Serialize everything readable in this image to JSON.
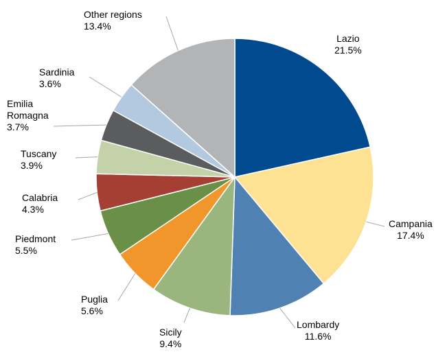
{
  "chart_data": {
    "type": "pie",
    "categories": [
      "Lazio",
      "Campania",
      "Lombardy",
      "Sicily",
      "Puglia",
      "Piedmont",
      "Calabria",
      "Tuscany",
      "Emilia Romagna",
      "Sardinia",
      "Other regions"
    ],
    "values": [
      21.5,
      17.4,
      11.6,
      9.4,
      5.6,
      5.5,
      4.3,
      3.9,
      3.7,
      3.6,
      13.4
    ],
    "value_labels": [
      "21.5%",
      "17.4%",
      "11.6%",
      "9.4%",
      "5.6%",
      "5.5%",
      "4.3%",
      "3.9%",
      "3.7%",
      "3.6%",
      "13.4%"
    ],
    "colors": [
      "#004a8f",
      "#fde293",
      "#4f81b3",
      "#9bb57f",
      "#f0962a",
      "#6a8f46",
      "#a63f33",
      "#c3d2a8",
      "#5a5c5e",
      "#b3c9df",
      "#b3b4b6"
    ]
  }
}
